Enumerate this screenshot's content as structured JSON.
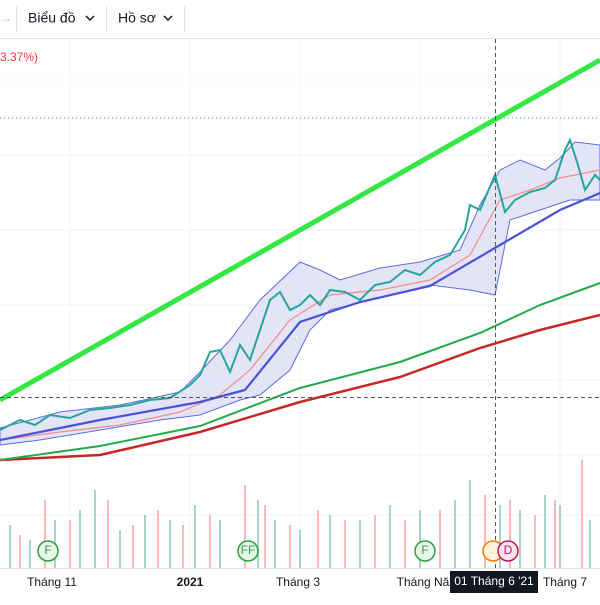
{
  "toolbar": {
    "menus": [
      "Biểu đồ",
      "Hồ sơ"
    ]
  },
  "legend": {
    "change": "3.37%)"
  },
  "x_axis": {
    "labels": [
      "Tháng 11",
      "2021",
      "Tháng 3",
      "Tháng Năm",
      "Tháng 7"
    ]
  },
  "crosshair": {
    "label": "01 Tháng 6 '21"
  },
  "events": [
    "F",
    "FF",
    "F",
    "D"
  ]
}
